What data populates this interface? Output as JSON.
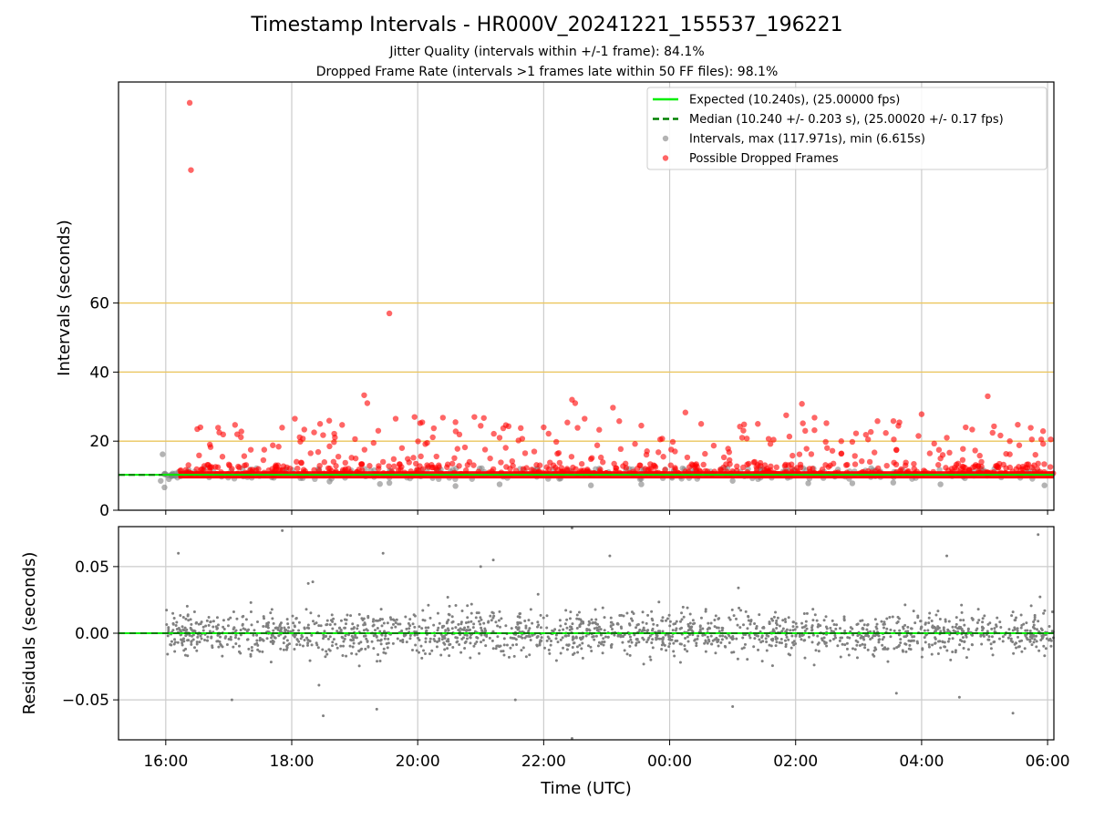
{
  "figure": {
    "title": "Timestamp Intervals - HR000V_20241221_155537_196221",
    "subtitle_1": "Jitter Quality (intervals within +/-1 frame): 84.1%",
    "subtitle_2": "Dropped Frame Rate (intervals >1 frames late within 50 FF files): 98.1%"
  },
  "colors": {
    "expected": "#00ee00",
    "median": "#008000",
    "intervals": "#808080",
    "dropped": "#ff0000",
    "ref_lines": "#f2c64a",
    "grid": "#cccccc"
  },
  "chart_data": [
    {
      "type": "scatter",
      "panel": "top",
      "xlabel": "",
      "ylabel": "Intervals (seconds)",
      "x_unit": "hours since 16:00 UTC",
      "xlim": [
        -0.75,
        14.1
      ],
      "ylim": [
        0,
        124
      ],
      "y_ticks": [
        0,
        20,
        40,
        60
      ],
      "y_tick_labels": [
        "0",
        "20",
        "40",
        "60"
      ],
      "grid": true,
      "horizontal_reference_lines": [
        20,
        40,
        60
      ],
      "legend_position": "top-right",
      "legend": [
        {
          "label": "Expected (10.240s), (25.00000 fps)",
          "kind": "solid-line",
          "color": "#00ee00"
        },
        {
          "label": "Median (10.240 +/- 0.203 s), (25.00020 +/- 0.17 fps)",
          "kind": "dashed-line",
          "color": "#008000"
        },
        {
          "label": "Intervals, max (117.971s), min (6.615s)",
          "kind": "marker",
          "color": "#808080"
        },
        {
          "label": "Possible Dropped Frames",
          "kind": "marker",
          "color": "#ff0000"
        }
      ],
      "expected_value": 10.24,
      "median_value": 10.24,
      "series": [
        {
          "name": "Possible Dropped Frames",
          "color": "#ff0000",
          "band": {
            "x_start": 0.2,
            "x_end": 14.1,
            "y": 10.24
          },
          "outliers": [
            [
              0.38,
              117.97
            ],
            [
              0.4,
              98.5
            ],
            [
              3.55,
              57.0
            ],
            [
              3.15,
              33.3
            ],
            [
              3.2,
              31.0
            ],
            [
              6.45,
              32.0
            ],
            [
              6.5,
              31.0
            ],
            [
              7.1,
              29.7
            ],
            [
              8.25,
              28.3
            ],
            [
              10.1,
              30.8
            ],
            [
              12.0,
              27.8
            ],
            [
              13.05,
              33.0
            ],
            [
              0.5,
              23.5
            ],
            [
              0.55,
              24.0
            ],
            [
              0.85,
              22.5
            ],
            [
              1.1,
              24.7
            ],
            [
              1.2,
              22.8
            ],
            [
              2.05,
              26.5
            ],
            [
              2.45,
              25.0
            ],
            [
              2.8,
              24.7
            ],
            [
              3.65,
              26.5
            ],
            [
              3.95,
              27.0
            ],
            [
              4.4,
              26.8
            ],
            [
              4.6,
              25.5
            ],
            [
              4.9,
              27.0
            ],
            [
              5.05,
              26.7
            ],
            [
              6.0,
              24.0
            ],
            [
              6.65,
              26.5
            ],
            [
              7.2,
              25.8
            ],
            [
              7.55,
              24.5
            ],
            [
              8.5,
              25.0
            ],
            [
              9.4,
              25.0
            ],
            [
              9.85,
              27.5
            ],
            [
              10.3,
              26.8
            ],
            [
              11.3,
              25.8
            ],
            [
              12.4,
              21.0
            ],
            [
              12.7,
              24.0
            ],
            [
              13.15,
              24.3
            ],
            [
              13.4,
              20.0
            ],
            [
              13.75,
              20.5
            ],
            [
              13.9,
              20.5
            ],
            [
              14.05,
              20.5
            ],
            [
              0.7,
              19.0
            ],
            [
              1.35,
              17.5
            ],
            [
              1.7,
              18.8
            ],
            [
              2.3,
              16.5
            ],
            [
              2.6,
              18.5
            ],
            [
              3.3,
              19.5
            ],
            [
              3.75,
              18.0
            ],
            [
              4.15,
              19.5
            ],
            [
              4.75,
              18.2
            ],
            [
              5.3,
              21.0
            ],
            [
              5.6,
              20.2
            ],
            [
              5.85,
              17.0
            ],
            [
              6.2,
              19.8
            ],
            [
              6.85,
              18.8
            ],
            [
              7.45,
              19.2
            ],
            [
              7.85,
              20.5
            ],
            [
              8.05,
              19.8
            ],
            [
              8.7,
              18.7
            ],
            [
              9.15,
              21.0
            ],
            [
              9.6,
              19.2
            ],
            [
              10.5,
              18.0
            ],
            [
              10.9,
              19.8
            ],
            [
              11.15,
              20.5
            ],
            [
              11.6,
              17.5
            ],
            [
              11.95,
              21.5
            ],
            [
              12.2,
              19.3
            ],
            [
              12.85,
              17.3
            ],
            [
              13.55,
              18.8
            ],
            [
              0.9,
              15.5
            ],
            [
              1.55,
              14.5
            ],
            [
              2.15,
              13.8
            ],
            [
              2.95,
              15.2
            ],
            [
              3.45,
              14.0
            ],
            [
              4.05,
              15.6
            ],
            [
              4.55,
              13.5
            ],
            [
              5.15,
              15.0
            ],
            [
              5.5,
              14.2
            ],
            [
              6.1,
              13.8
            ],
            [
              6.75,
              14.8
            ],
            [
              7.3,
              13.5
            ],
            [
              7.9,
              15.5
            ],
            [
              8.35,
              13.3
            ],
            [
              8.95,
              14.5
            ],
            [
              9.35,
              14.0
            ],
            [
              9.95,
              15.8
            ],
            [
              10.6,
              13.5
            ],
            [
              11.05,
              14.2
            ],
            [
              11.75,
              13.8
            ],
            [
              12.3,
              15.0
            ],
            [
              12.95,
              14.0
            ],
            [
              13.3,
              13.2
            ],
            [
              13.85,
              13.5
            ]
          ]
        },
        {
          "name": "Intervals, max (117.971s), min (6.615s)",
          "color": "#808080",
          "band": {
            "x_start": 0.0,
            "x_end": 14.1,
            "y": 10.24
          },
          "outliers": [
            [
              -0.05,
              16.2
            ],
            [
              -0.02,
              6.6
            ],
            [
              -0.08,
              8.5
            ],
            [
              0.05,
              9.0
            ],
            [
              3.4,
              7.6
            ],
            [
              3.55,
              7.9
            ],
            [
              4.6,
              7.0
            ],
            [
              5.3,
              7.5
            ],
            [
              6.75,
              7.2
            ],
            [
              7.55,
              7.5
            ],
            [
              10.2,
              7.8
            ],
            [
              10.9,
              7.8
            ],
            [
              11.55,
              8.0
            ],
            [
              12.3,
              7.5
            ],
            [
              13.95,
              7.2
            ],
            [
              2.6,
              8.3
            ],
            [
              9.0,
              8.5
            ]
          ]
        }
      ]
    },
    {
      "type": "scatter",
      "panel": "bottom",
      "xlabel": "Time (UTC)",
      "ylabel": "Residuals (seconds)",
      "x_unit": "hours since 16:00 UTC",
      "xlim": [
        -0.75,
        14.1
      ],
      "ylim": [
        -0.08,
        0.08
      ],
      "y_ticks": [
        -0.05,
        0.0,
        0.05
      ],
      "y_tick_labels": [
        "−0.05",
        "0.00",
        "0.05"
      ],
      "x_ticks": [
        0,
        2,
        4,
        6,
        8,
        10,
        12,
        14
      ],
      "x_tick_labels": [
        "16:00",
        "18:00",
        "20:00",
        "22:00",
        "00:00",
        "02:00",
        "04:00",
        "06:00"
      ],
      "grid": true,
      "series": [
        {
          "name": "Residuals",
          "color": "#808080",
          "x_range": [
            0.0,
            14.1
          ],
          "point_count": 1800,
          "typical_spread": 0.015,
          "extremes": [
            [
              1.85,
              0.077
            ],
            [
              6.45,
              0.079
            ],
            [
              6.45,
              -0.079
            ],
            [
              2.5,
              -0.062
            ],
            [
              3.35,
              -0.057
            ],
            [
              5.55,
              -0.05
            ],
            [
              0.2,
              0.06
            ],
            [
              1.05,
              -0.05
            ],
            [
              3.45,
              0.06
            ],
            [
              13.85,
              0.074
            ],
            [
              12.4,
              0.058
            ],
            [
              13.45,
              -0.06
            ],
            [
              9.0,
              -0.055
            ],
            [
              12.6,
              -0.048
            ],
            [
              5.2,
              0.055
            ],
            [
              7.05,
              0.058
            ],
            [
              11.6,
              -0.045
            ],
            [
              5.0,
              0.05
            ]
          ]
        }
      ]
    }
  ]
}
